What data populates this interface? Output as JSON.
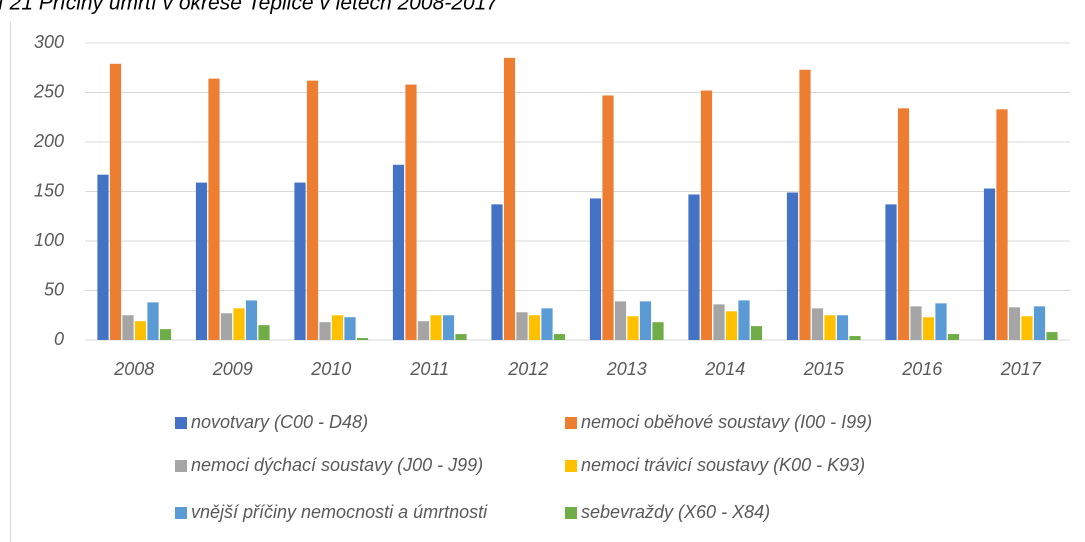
{
  "chart_data": {
    "type": "bar",
    "title": "f 21  Příčiny úmrtí v okrese Teplice v letech 2008-2017",
    "categories": [
      "2008",
      "2009",
      "2010",
      "2011",
      "2012",
      "2013",
      "2014",
      "2015",
      "2016",
      "2017"
    ],
    "series": [
      {
        "name": "novotvary (C00 - D48)",
        "color": "#4472c4",
        "values": [
          167,
          159,
          159,
          177,
          137,
          143,
          147,
          149,
          137,
          153
        ]
      },
      {
        "name": "nemoci oběhové soustavy (I00 - I99)",
        "color": "#ed7d31",
        "values": [
          279,
          264,
          262,
          258,
          285,
          247,
          252,
          273,
          234,
          233
        ]
      },
      {
        "name": "nemoci dýchací soustavy (J00 - J99)",
        "color": "#a5a5a5",
        "values": [
          25,
          27,
          18,
          19,
          28,
          39,
          36,
          32,
          34,
          33
        ]
      },
      {
        "name": "nemoci trávicí soustavy (K00 - K93)",
        "color": "#ffc000",
        "values": [
          19,
          32,
          25,
          25,
          25,
          24,
          29,
          25,
          23,
          24
        ]
      },
      {
        "name": "vnější příčiny nemocnosti a úmrtnosti",
        "color": "#5b9bd5",
        "values": [
          38,
          40,
          23,
          25,
          32,
          39,
          40,
          25,
          37,
          34
        ]
      },
      {
        "name": "sebevraždy (X60 - X84)",
        "color": "#70ad47",
        "values": [
          11,
          15,
          2,
          6,
          6,
          18,
          14,
          4,
          6,
          8
        ]
      }
    ],
    "ylim": [
      0,
      300
    ],
    "yticks": [
      0,
      50,
      100,
      150,
      200,
      250,
      300
    ],
    "grid": true
  }
}
